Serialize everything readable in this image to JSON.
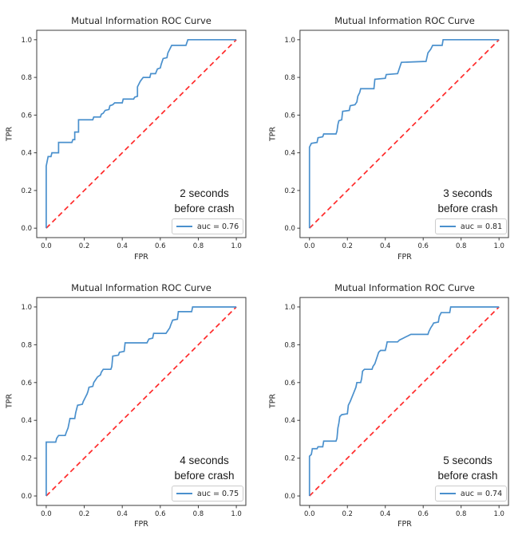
{
  "figure": {
    "background": "#ffffff",
    "rows": 2,
    "cols": 2
  },
  "colors": {
    "roc_line": "#4a90cd",
    "diagonal": "#ff2a2a",
    "frame": "#3c3c3c",
    "text": "#262626",
    "legend_border": "#cccccc"
  },
  "axes": {
    "x_tick_labels": [
      "0.0",
      "0.2",
      "0.4",
      "0.6",
      "0.8",
      "1.0"
    ],
    "y_tick_labels": [
      "0.0",
      "0.2",
      "0.4",
      "0.6",
      "0.8",
      "1.0"
    ],
    "tick_values": [
      0,
      0.2,
      0.4,
      0.6,
      0.8,
      1.0
    ],
    "axis_range": [
      -0.05,
      1.05
    ],
    "grid": false,
    "legend_position": "lower right"
  },
  "chart_data": [
    {
      "type": "line",
      "title": "Mutual Information ROC Curve",
      "xlabel": "FPR",
      "ylabel": "TPR",
      "xlim": [
        -0.05,
        1.05
      ],
      "ylim": [
        -0.05,
        1.05
      ],
      "annotation_line1": "2 seconds",
      "annotation_line2": "before crash",
      "legend_label": "auc = 0.76",
      "auc": 0.76,
      "series": [
        {
          "name": "roc-curve",
          "color": "#4a90cd",
          "dashed": false,
          "points": [
            [
              0,
              0
            ],
            [
              0,
              0.33
            ],
            [
              0.005,
              0.355
            ],
            [
              0.01,
              0.38
            ],
            [
              0.025,
              0.38
            ],
            [
              0.03,
              0.4
            ],
            [
              0.065,
              0.4
            ],
            [
              0.065,
              0.455
            ],
            [
              0.135,
              0.455
            ],
            [
              0.14,
              0.47
            ],
            [
              0.15,
              0.47
            ],
            [
              0.15,
              0.51
            ],
            [
              0.17,
              0.51
            ],
            [
              0.17,
              0.575
            ],
            [
              0.245,
              0.575
            ],
            [
              0.25,
              0.59
            ],
            [
              0.285,
              0.59
            ],
            [
              0.29,
              0.605
            ],
            [
              0.3,
              0.61
            ],
            [
              0.31,
              0.625
            ],
            [
              0.33,
              0.63
            ],
            [
              0.335,
              0.65
            ],
            [
              0.35,
              0.655
            ],
            [
              0.36,
              0.665
            ],
            [
              0.4,
              0.665
            ],
            [
              0.405,
              0.685
            ],
            [
              0.46,
              0.685
            ],
            [
              0.465,
              0.695
            ],
            [
              0.48,
              0.7
            ],
            [
              0.48,
              0.75
            ],
            [
              0.495,
              0.78
            ],
            [
              0.51,
              0.8
            ],
            [
              0.545,
              0.8
            ],
            [
              0.55,
              0.82
            ],
            [
              0.575,
              0.82
            ],
            [
              0.585,
              0.845
            ],
            [
              0.6,
              0.85
            ],
            [
              0.605,
              0.87
            ],
            [
              0.615,
              0.9
            ],
            [
              0.635,
              0.905
            ],
            [
              0.64,
              0.93
            ],
            [
              0.65,
              0.95
            ],
            [
              0.66,
              0.97
            ],
            [
              0.735,
              0.97
            ],
            [
              0.745,
              1.0
            ],
            [
              1,
              1
            ]
          ]
        },
        {
          "name": "chance-diagonal",
          "color": "#ff2a2a",
          "dashed": true,
          "points": [
            [
              0,
              0
            ],
            [
              1,
              1
            ]
          ]
        }
      ]
    },
    {
      "type": "line",
      "title": "Mutual Information ROC Curve",
      "xlabel": "FPR",
      "ylabel": "TPR",
      "xlim": [
        -0.05,
        1.05
      ],
      "ylim": [
        -0.05,
        1.05
      ],
      "annotation_line1": "3 seconds",
      "annotation_line2": "before crash",
      "legend_label": "auc = 0.81",
      "auc": 0.81,
      "series": [
        {
          "name": "roc-curve",
          "color": "#4a90cd",
          "dashed": false,
          "points": [
            [
              0,
              0
            ],
            [
              0,
              0.43
            ],
            [
              0.01,
              0.45
            ],
            [
              0.04,
              0.455
            ],
            [
              0.045,
              0.48
            ],
            [
              0.07,
              0.485
            ],
            [
              0.075,
              0.5
            ],
            [
              0.14,
              0.5
            ],
            [
              0.145,
              0.515
            ],
            [
              0.15,
              0.55
            ],
            [
              0.155,
              0.57
            ],
            [
              0.17,
              0.575
            ],
            [
              0.175,
              0.62
            ],
            [
              0.21,
              0.625
            ],
            [
              0.215,
              0.65
            ],
            [
              0.24,
              0.655
            ],
            [
              0.25,
              0.67
            ],
            [
              0.255,
              0.7
            ],
            [
              0.265,
              0.72
            ],
            [
              0.27,
              0.74
            ],
            [
              0.34,
              0.74
            ],
            [
              0.345,
              0.79
            ],
            [
              0.4,
              0.795
            ],
            [
              0.405,
              0.815
            ],
            [
              0.465,
              0.82
            ],
            [
              0.475,
              0.85
            ],
            [
              0.485,
              0.88
            ],
            [
              0.615,
              0.885
            ],
            [
              0.625,
              0.93
            ],
            [
              0.64,
              0.95
            ],
            [
              0.65,
              0.97
            ],
            [
              0.7,
              0.97
            ],
            [
              0.705,
              1.0
            ],
            [
              1,
              1
            ]
          ]
        },
        {
          "name": "chance-diagonal",
          "color": "#ff2a2a",
          "dashed": true,
          "points": [
            [
              0,
              0
            ],
            [
              1,
              1
            ]
          ]
        }
      ]
    },
    {
      "type": "line",
      "title": "Mutual Information ROC Curve",
      "xlabel": "FPR",
      "ylabel": "TPR",
      "xlim": [
        -0.05,
        1.05
      ],
      "ylim": [
        -0.05,
        1.05
      ],
      "annotation_line1": "4 seconds",
      "annotation_line2": "before crash",
      "legend_label": "auc = 0.75",
      "auc": 0.75,
      "series": [
        {
          "name": "roc-curve",
          "color": "#4a90cd",
          "dashed": false,
          "points": [
            [
              0,
              0
            ],
            [
              0,
              0.285
            ],
            [
              0.05,
              0.285
            ],
            [
              0.055,
              0.305
            ],
            [
              0.065,
              0.32
            ],
            [
              0.1,
              0.32
            ],
            [
              0.105,
              0.335
            ],
            [
              0.115,
              0.36
            ],
            [
              0.12,
              0.385
            ],
            [
              0.125,
              0.41
            ],
            [
              0.15,
              0.41
            ],
            [
              0.155,
              0.44
            ],
            [
              0.16,
              0.46
            ],
            [
              0.165,
              0.48
            ],
            [
              0.19,
              0.485
            ],
            [
              0.195,
              0.5
            ],
            [
              0.205,
              0.52
            ],
            [
              0.215,
              0.54
            ],
            [
              0.22,
              0.555
            ],
            [
              0.225,
              0.575
            ],
            [
              0.245,
              0.58
            ],
            [
              0.25,
              0.6
            ],
            [
              0.26,
              0.615
            ],
            [
              0.27,
              0.63
            ],
            [
              0.285,
              0.64
            ],
            [
              0.29,
              0.655
            ],
            [
              0.3,
              0.67
            ],
            [
              0.34,
              0.67
            ],
            [
              0.345,
              0.685
            ],
            [
              0.35,
              0.74
            ],
            [
              0.38,
              0.745
            ],
            [
              0.385,
              0.76
            ],
            [
              0.41,
              0.765
            ],
            [
              0.415,
              0.81
            ],
            [
              0.53,
              0.81
            ],
            [
              0.54,
              0.83
            ],
            [
              0.56,
              0.835
            ],
            [
              0.565,
              0.86
            ],
            [
              0.63,
              0.86
            ],
            [
              0.64,
              0.875
            ],
            [
              0.65,
              0.89
            ],
            [
              0.655,
              0.905
            ],
            [
              0.665,
              0.93
            ],
            [
              0.69,
              0.935
            ],
            [
              0.695,
              0.975
            ],
            [
              0.765,
              0.975
            ],
            [
              0.77,
              1.0
            ],
            [
              1,
              1
            ]
          ]
        },
        {
          "name": "chance-diagonal",
          "color": "#ff2a2a",
          "dashed": true,
          "points": [
            [
              0,
              0
            ],
            [
              1,
              1
            ]
          ]
        }
      ]
    },
    {
      "type": "line",
      "title": "Mutual Information ROC Curve",
      "xlabel": "FPR",
      "ylabel": "TPR",
      "xlim": [
        -0.05,
        1.05
      ],
      "ylim": [
        -0.05,
        1.05
      ],
      "annotation_line1": "5 seconds",
      "annotation_line2": "before crash",
      "legend_label": "auc = 0.74",
      "auc": 0.74,
      "series": [
        {
          "name": "roc-curve",
          "color": "#4a90cd",
          "dashed": false,
          "points": [
            [
              0,
              0
            ],
            [
              0,
              0.21
            ],
            [
              0.01,
              0.22
            ],
            [
              0.015,
              0.25
            ],
            [
              0.04,
              0.25
            ],
            [
              0.045,
              0.26
            ],
            [
              0.07,
              0.26
            ],
            [
              0.075,
              0.29
            ],
            [
              0.14,
              0.29
            ],
            [
              0.145,
              0.305
            ],
            [
              0.15,
              0.36
            ],
            [
              0.155,
              0.385
            ],
            [
              0.16,
              0.42
            ],
            [
              0.17,
              0.43
            ],
            [
              0.2,
              0.435
            ],
            [
              0.205,
              0.48
            ],
            [
              0.215,
              0.5
            ],
            [
              0.225,
              0.525
            ],
            [
              0.235,
              0.55
            ],
            [
              0.245,
              0.575
            ],
            [
              0.25,
              0.6
            ],
            [
              0.27,
              0.6
            ],
            [
              0.275,
              0.62
            ],
            [
              0.28,
              0.66
            ],
            [
              0.29,
              0.67
            ],
            [
              0.33,
              0.67
            ],
            [
              0.335,
              0.685
            ],
            [
              0.345,
              0.7
            ],
            [
              0.355,
              0.73
            ],
            [
              0.365,
              0.76
            ],
            [
              0.375,
              0.77
            ],
            [
              0.4,
              0.77
            ],
            [
              0.405,
              0.79
            ],
            [
              0.41,
              0.815
            ],
            [
              0.465,
              0.815
            ],
            [
              0.475,
              0.825
            ],
            [
              0.495,
              0.835
            ],
            [
              0.515,
              0.845
            ],
            [
              0.535,
              0.855
            ],
            [
              0.625,
              0.855
            ],
            [
              0.63,
              0.87
            ],
            [
              0.64,
              0.89
            ],
            [
              0.65,
              0.905
            ],
            [
              0.655,
              0.915
            ],
            [
              0.68,
              0.92
            ],
            [
              0.685,
              0.95
            ],
            [
              0.695,
              0.97
            ],
            [
              0.74,
              0.97
            ],
            [
              0.745,
              1.0
            ],
            [
              1,
              1
            ]
          ]
        },
        {
          "name": "chance-diagonal",
          "color": "#ff2a2a",
          "dashed": true,
          "points": [
            [
              0,
              0
            ],
            [
              1,
              1
            ]
          ]
        }
      ]
    }
  ]
}
